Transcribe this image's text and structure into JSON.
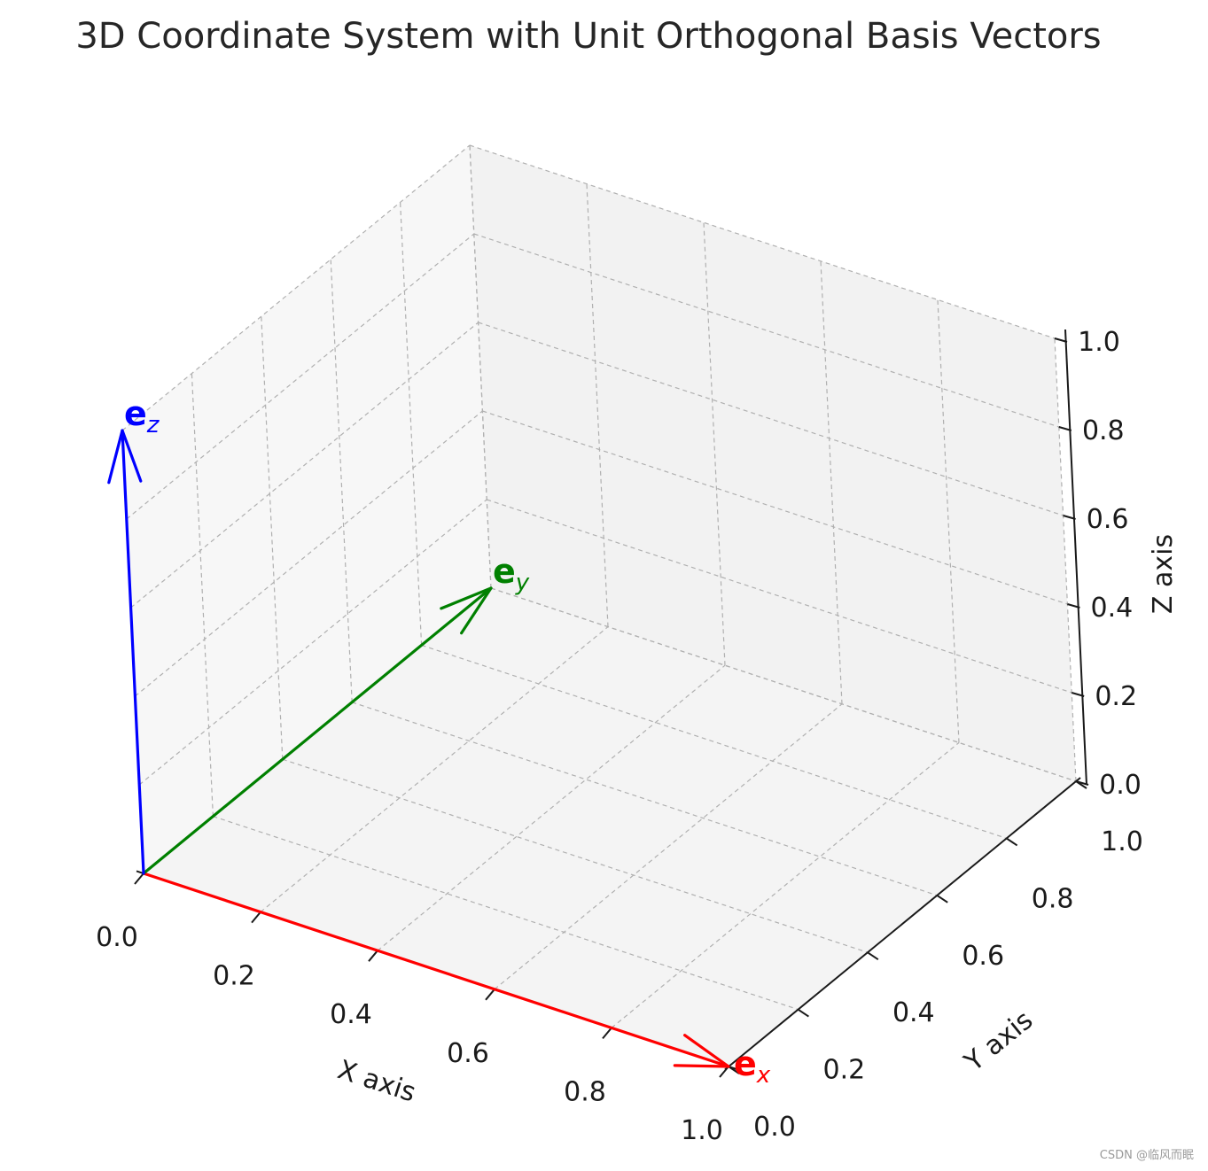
{
  "chart_data": {
    "type": "3d-quiver",
    "title": "3D Coordinate System with Unit Orthogonal Basis Vectors",
    "xlabel": "X axis",
    "ylabel": "Y axis",
    "zlabel": "Z axis",
    "xlim": [
      0,
      1
    ],
    "ylim": [
      0,
      1
    ],
    "zlim": [
      0,
      1
    ],
    "xticks": [
      "0.0",
      "0.2",
      "0.4",
      "0.6",
      "0.8",
      "1.0"
    ],
    "yticks": [
      "0.0",
      "0.2",
      "0.4",
      "0.6",
      "0.8",
      "1.0"
    ],
    "zticks": [
      "0.0",
      "0.2",
      "0.4",
      "0.6",
      "0.8",
      "1.0"
    ],
    "grid": true,
    "vectors": [
      {
        "name": "e",
        "subscript": "x",
        "origin": [
          0,
          0,
          0
        ],
        "vector": [
          1,
          0,
          0
        ],
        "color": "#ff0000"
      },
      {
        "name": "e",
        "subscript": "y",
        "origin": [
          0,
          0,
          0
        ],
        "vector": [
          0,
          1,
          0
        ],
        "color": "#008000"
      },
      {
        "name": "e",
        "subscript": "z",
        "origin": [
          0,
          0,
          0
        ],
        "vector": [
          0,
          0,
          1
        ],
        "color": "#0000ff"
      }
    ]
  },
  "watermark": "CSDN @临风而眠"
}
